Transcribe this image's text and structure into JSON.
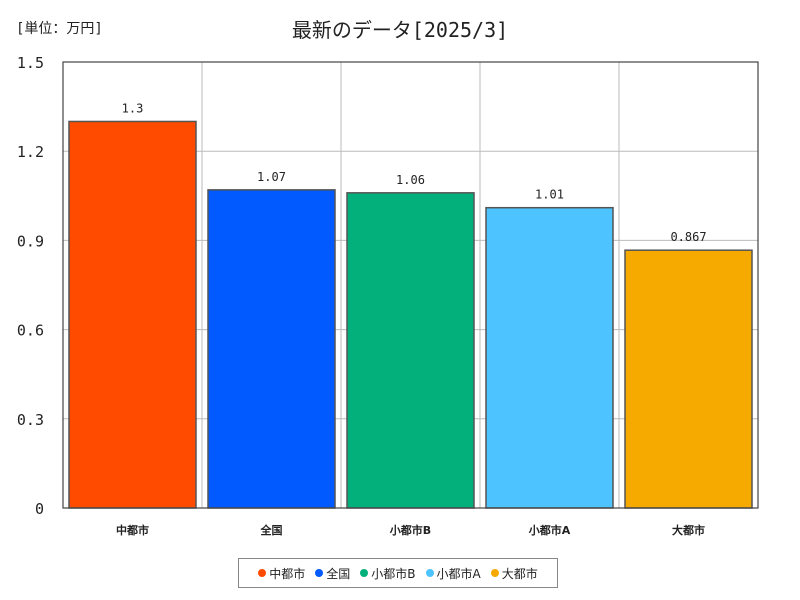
{
  "unit_label": "[単位：万円]",
  "chart_data": {
    "type": "bar",
    "title": "最新のデータ[2025/3]",
    "categories": [
      "中都市",
      "全国",
      "小都市B",
      "小都市A",
      "大都市"
    ],
    "values": [
      1.3,
      1.07,
      1.06,
      1.01,
      0.867
    ],
    "value_labels": [
      "1.3",
      "1.07",
      "1.06",
      "1.01",
      "0.867"
    ],
    "colors": [
      "#ff4b00",
      "#005aff",
      "#03af7a",
      "#4dc4ff",
      "#f6aa00"
    ],
    "ylim": [
      0,
      1.5
    ],
    "yticks": [
      0,
      0.3,
      0.6,
      0.9,
      1.2,
      1.5
    ],
    "ytick_labels": [
      "0",
      "0.3",
      "0.6",
      "0.9",
      "1.2",
      "1.5"
    ],
    "grid": true,
    "legend_position": "bottom",
    "legend": [
      "中都市",
      "全国",
      "小都市B",
      "小都市A",
      "大都市"
    ]
  }
}
